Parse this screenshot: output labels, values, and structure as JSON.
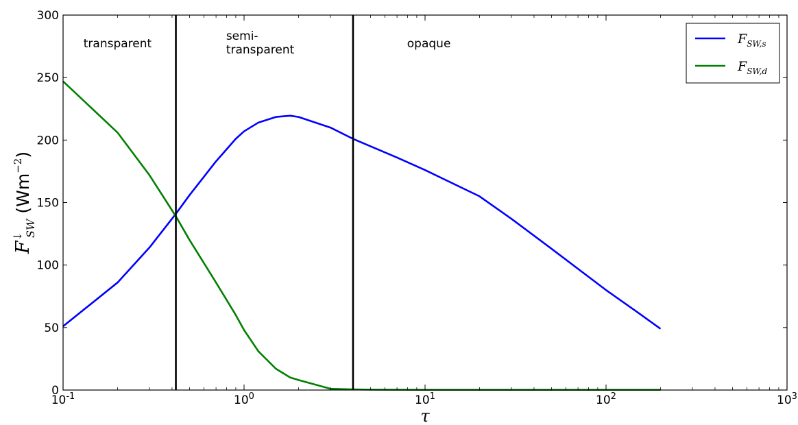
{
  "chart_data": {
    "type": "line",
    "xscale": "log",
    "xlim": [
      0.1,
      1000
    ],
    "ylim": [
      0,
      300
    ],
    "xlabel": "τ",
    "ylabel": {
      "main": "F",
      "superscript": "↓",
      "subscript": "SW",
      "units_open": "(Wm",
      "units_exp": "−2",
      "units_close": ")"
    },
    "x_ticks": [
      {
        "value": 0.1,
        "base": "10",
        "exp": "-1"
      },
      {
        "value": 1,
        "base": "10",
        "exp": "0"
      },
      {
        "value": 10,
        "base": "10",
        "exp": "1"
      },
      {
        "value": 100,
        "base": "10",
        "exp": "2"
      },
      {
        "value": 1000,
        "base": "10",
        "exp": "3"
      }
    ],
    "y_ticks": [
      0,
      50,
      100,
      150,
      200,
      250,
      300
    ],
    "vlines": [
      0.42,
      4.0
    ],
    "regions": [
      {
        "lines": [
          "transparent"
        ],
        "x": 0.2
      },
      {
        "lines": [
          "semi-",
          "transparent"
        ],
        "x": 1.32
      },
      {
        "lines": [
          "opaque"
        ],
        "x": 10.5
      }
    ],
    "legend_position": "upper right",
    "series": [
      {
        "name": "F_SW,s",
        "label_main": "F",
        "label_sub": "SW,s",
        "color": "#0000ff",
        "x": [
          0.1,
          0.2,
          0.3,
          0.42,
          0.5,
          0.7,
          0.9,
          1.0,
          1.2,
          1.5,
          1.8,
          2.0,
          3.0,
          4.0,
          5.0,
          7.0,
          10,
          20,
          30,
          50,
          100,
          150,
          200
        ],
        "y": [
          51,
          86,
          114,
          141,
          156,
          183,
          201,
          207,
          214,
          218.5,
          219.5,
          218.5,
          210,
          201,
          195,
          186,
          176,
          155,
          137,
          113,
          80,
          62,
          49
        ]
      },
      {
        "name": "F_SW,d",
        "label_main": "F",
        "label_sub": "SW,d",
        "color": "#008000",
        "x": [
          0.1,
          0.2,
          0.3,
          0.42,
          0.5,
          0.7,
          0.9,
          1.0,
          1.2,
          1.5,
          1.8,
          2.0,
          3.0,
          4.0,
          5.0,
          10,
          100,
          200
        ],
        "y": [
          247,
          206,
          172,
          139,
          120,
          86,
          60,
          48,
          31,
          17,
          10,
          8,
          1,
          0.5,
          0.3,
          0.2,
          0.2,
          0.2
        ]
      }
    ]
  }
}
